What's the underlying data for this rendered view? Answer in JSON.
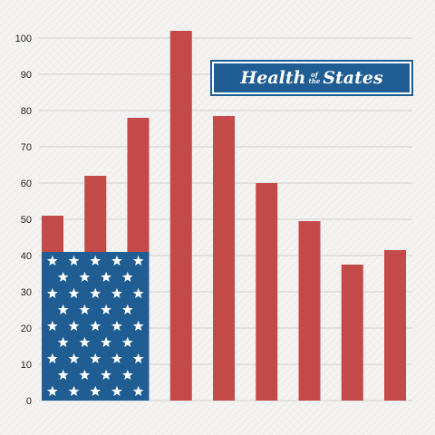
{
  "badge": {
    "word1": "Health",
    "word_small1": "of",
    "word_small2": "the",
    "word2": "States"
  },
  "colors": {
    "bar": "#c44a4a",
    "flag_field": "#1f5d93",
    "star": "#ffffff",
    "grid": "#cfcfcf",
    "background": "#f1f0ee"
  },
  "chart_data": {
    "type": "bar",
    "categories": [
      "",
      "",
      "",
      "",
      "",
      "",
      "",
      "",
      ""
    ],
    "values": [
      51,
      62,
      78,
      102,
      78.5,
      60,
      49.5,
      37.5,
      41.5
    ],
    "ylim": [
      0,
      100
    ],
    "yticks": [
      0,
      10,
      20,
      30,
      40,
      50,
      60,
      70,
      80,
      90,
      100
    ],
    "grid": true,
    "overlay": {
      "type": "flag-field",
      "top_value": 41,
      "spans_bars": 3,
      "star_rows": 9
    }
  }
}
